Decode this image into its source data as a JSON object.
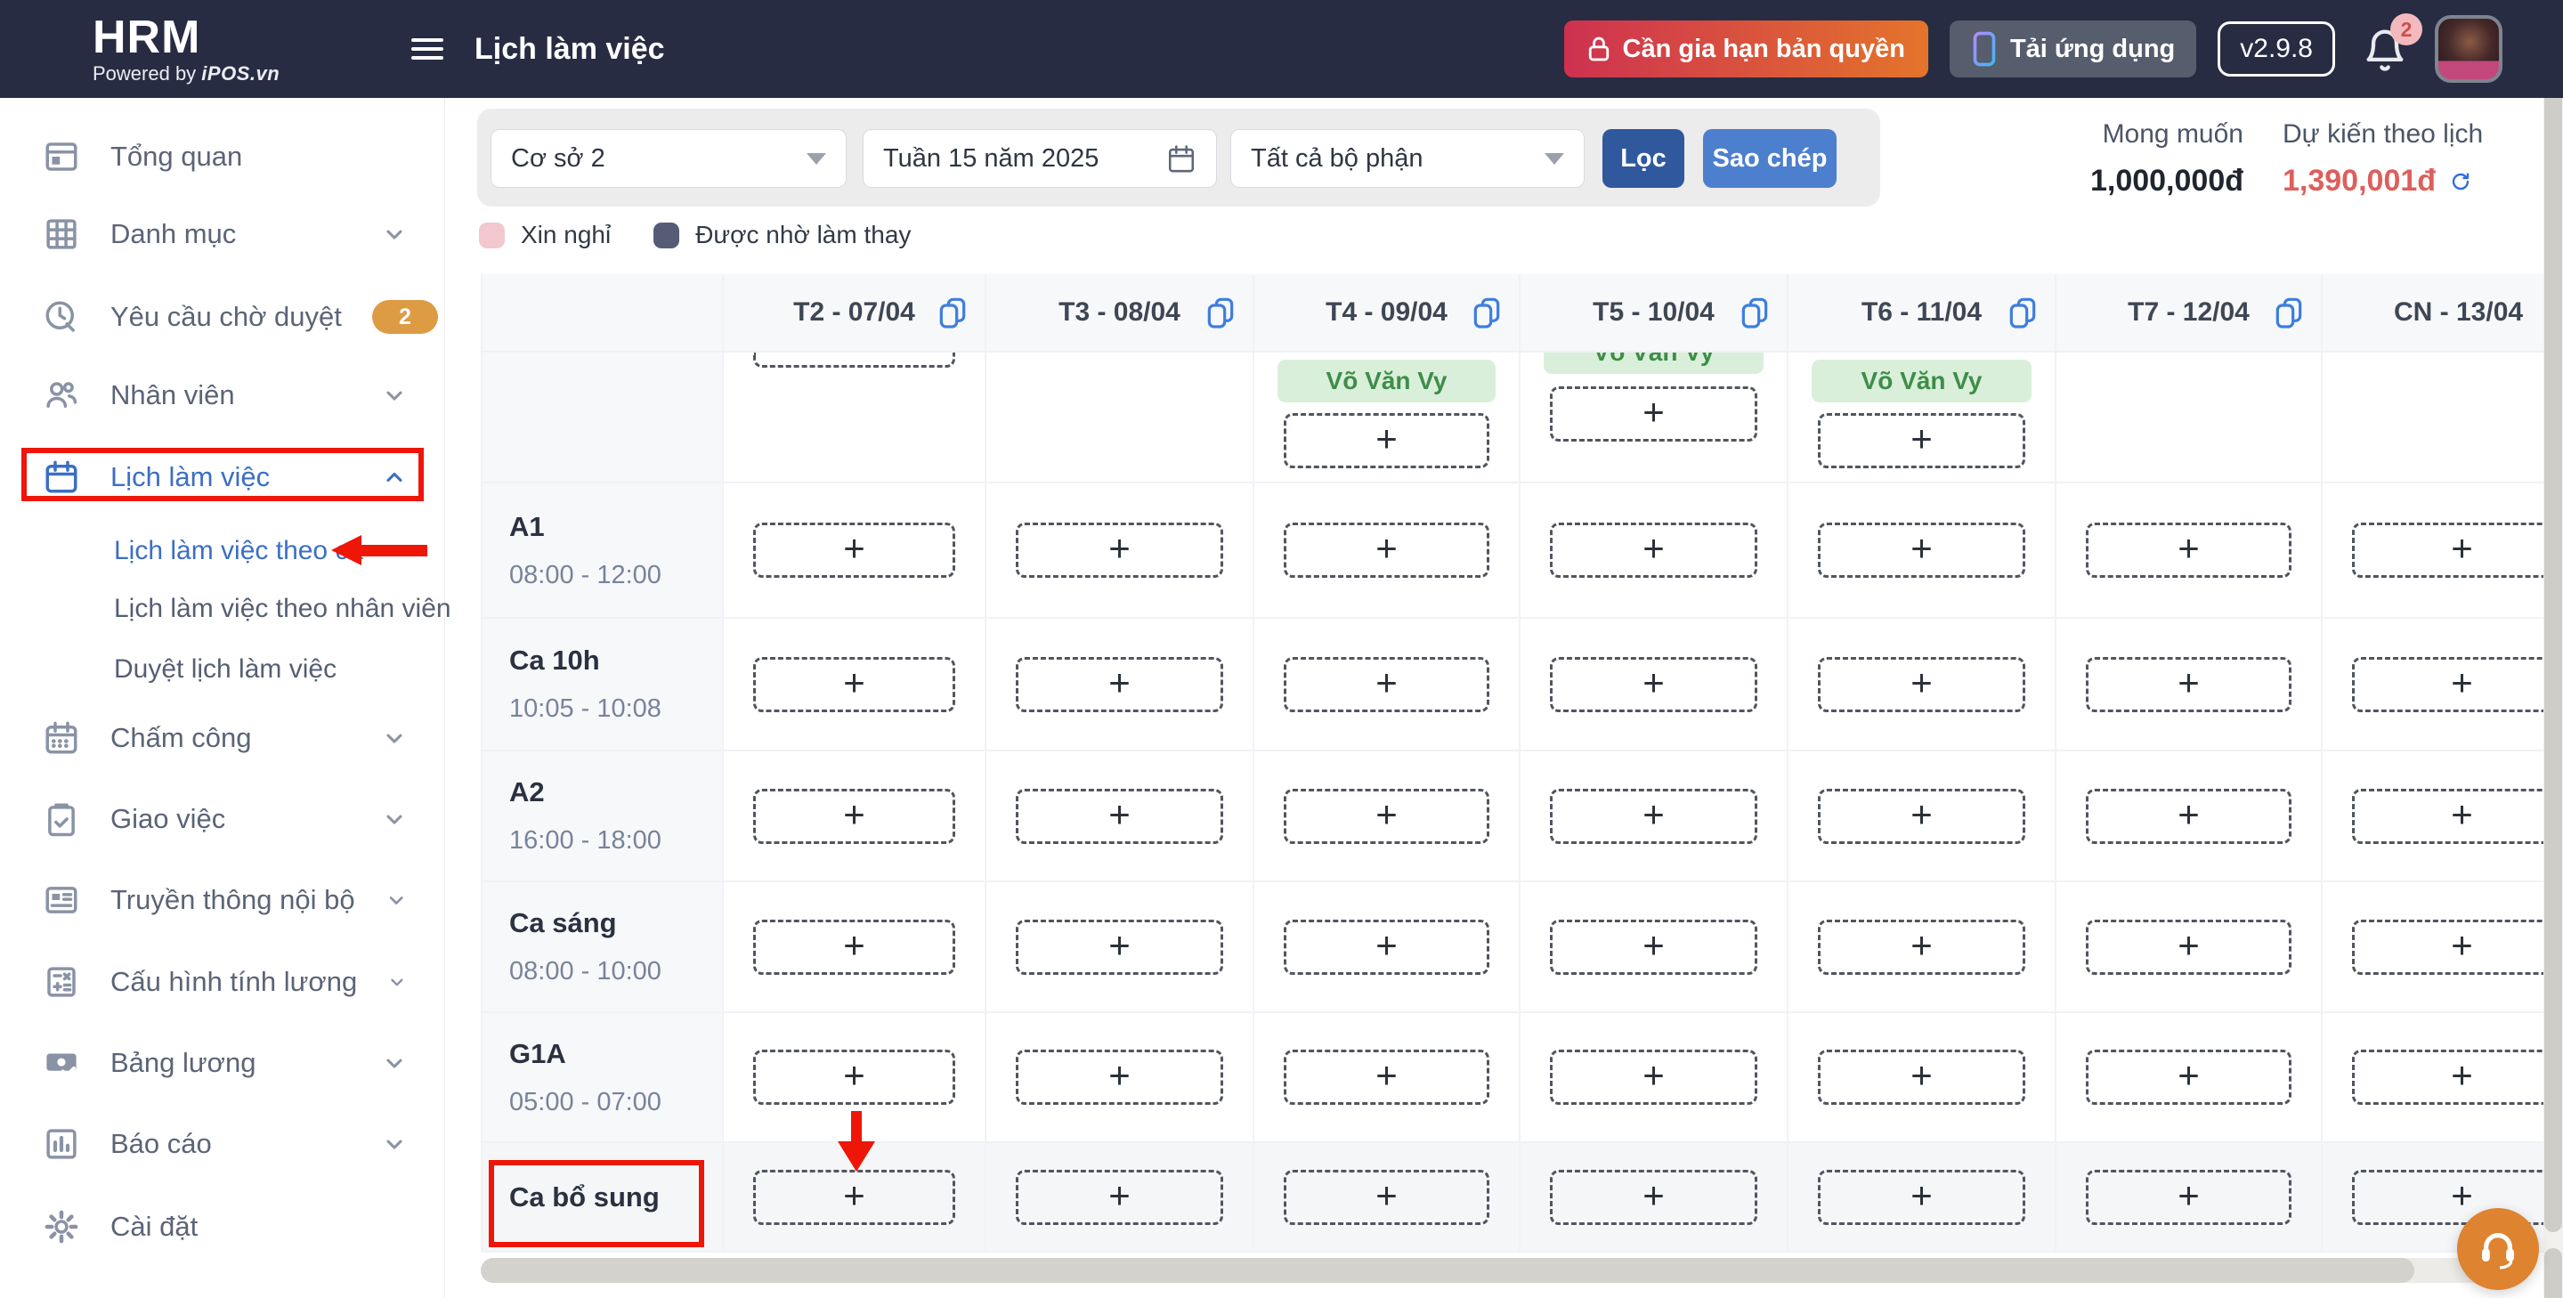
{
  "header": {
    "logo": "HRM",
    "powered_prefix": "Powered by ",
    "powered_brand": "iPOS.vn",
    "title": "Lịch làm việc",
    "license_button": "Cần gia hạn bản quyền",
    "download_button": "Tải ứng dụng",
    "version": "v2.9.8",
    "notification_count": "2"
  },
  "sidebar": {
    "items": [
      {
        "id": "tong-quan",
        "label": "Tổng quan",
        "icon": "overview"
      },
      {
        "id": "danh-muc",
        "label": "Danh mục",
        "icon": "grid",
        "chevron": "down"
      },
      {
        "id": "yeu-cau-cho-duyet",
        "label": "Yêu cầu chờ duyệt",
        "icon": "clock",
        "badge": "2"
      },
      {
        "id": "nhan-vien",
        "label": "Nhân viên",
        "icon": "users",
        "chevron": "down"
      },
      {
        "id": "lich-lam-viec",
        "label": "Lịch làm việc",
        "icon": "calendar",
        "chevron": "up",
        "active": true
      },
      {
        "id": "lich-lam-viec-theo-ca",
        "label": "Lịch làm việc theo ca",
        "sub": true,
        "active": true
      },
      {
        "id": "lich-lam-viec-theo-nhan-vien",
        "label": "Lịch làm việc theo nhân viên",
        "sub": true
      },
      {
        "id": "duyet-lich-lam-viec",
        "label": "Duyệt lịch làm việc",
        "sub": true
      },
      {
        "id": "cham-cong",
        "label": "Chấm công",
        "icon": "calendar-days",
        "chevron": "down"
      },
      {
        "id": "giao-viec",
        "label": "Giao việc",
        "icon": "clipboard",
        "chevron": "down"
      },
      {
        "id": "truyen-thong-noi-bo",
        "label": "Truyền thông nội bộ",
        "icon": "news",
        "chevron": "down"
      },
      {
        "id": "cau-hinh-tinh-luong",
        "label": "Cấu hình tính lương",
        "icon": "calculator",
        "chevron": "down"
      },
      {
        "id": "bang-luong",
        "label": "Bảng lương",
        "icon": "money",
        "chevron": "down"
      },
      {
        "id": "bao-cao",
        "label": "Báo cáo",
        "icon": "chart",
        "chevron": "down"
      },
      {
        "id": "cai-dat",
        "label": "Cài đặt",
        "icon": "gear"
      }
    ]
  },
  "filters": {
    "facility_value": "Cơ sở 2",
    "week_value": "Tuần 15 năm 2025",
    "department_value": "Tất cả bộ phận",
    "filter_button": "Lọc",
    "copy_button": "Sao chép"
  },
  "summary": {
    "expected_label": "Mong muốn",
    "expected_value": "1,000,000đ",
    "scheduled_label": "Dự kiến theo lịch",
    "scheduled_value": "1,390,001đ"
  },
  "legend": [
    {
      "label": "Xin nghỉ",
      "color": "#f2c7cd"
    },
    {
      "label": "Được nhờ làm thay",
      "color": "#575c76"
    }
  ],
  "schedule": {
    "employee": "Võ Văn Vy",
    "add_label": "+",
    "days": [
      {
        "label": "T2 - 07/04",
        "copy": true
      },
      {
        "label": "T3 - 08/04",
        "copy": true
      },
      {
        "label": "T4 - 09/04",
        "copy": true
      },
      {
        "label": "T5 - 10/04",
        "copy": true
      },
      {
        "label": "T6 - 11/04",
        "copy": true
      },
      {
        "label": "T7 - 12/04",
        "copy": true
      },
      {
        "label": "CN - 13/04",
        "copy": false
      }
    ],
    "top_row_cells": [
      {
        "day": 0,
        "partial_box": true
      },
      {
        "day": 2,
        "chip": true,
        "add": true
      },
      {
        "day": 3,
        "chip_clipped": true,
        "add": true
      },
      {
        "day": 4,
        "chip": true,
        "add": true
      }
    ],
    "shifts": [
      {
        "name": "A1",
        "time": "08:00 - 12:00"
      },
      {
        "name": "Ca 10h",
        "time": "10:05 - 10:08"
      },
      {
        "name": "A2",
        "time": "16:00 - 18:00"
      },
      {
        "name": "Ca sáng",
        "time": "08:00 - 10:00"
      },
      {
        "name": "G1A",
        "time": "05:00 - 07:00"
      },
      {
        "name": "Ca bổ sung",
        "time": "",
        "highlighted": true
      }
    ]
  },
  "colors": {
    "topbar_bg": "#272c43",
    "annotation_red": "#ee1607",
    "primary_blue": "#30589d",
    "secondary_blue": "#4c7fce",
    "active_blue": "#3b6fc4",
    "chip_green_bg": "#d9efda",
    "chip_green_text": "#3e8d49",
    "badge_orange": "#dd9b44",
    "scheduled_red": "#dd5f5c",
    "support_orange": "#de8330",
    "license_gradient_from": "#ce3150",
    "license_gradient_to": "#e4742b"
  }
}
